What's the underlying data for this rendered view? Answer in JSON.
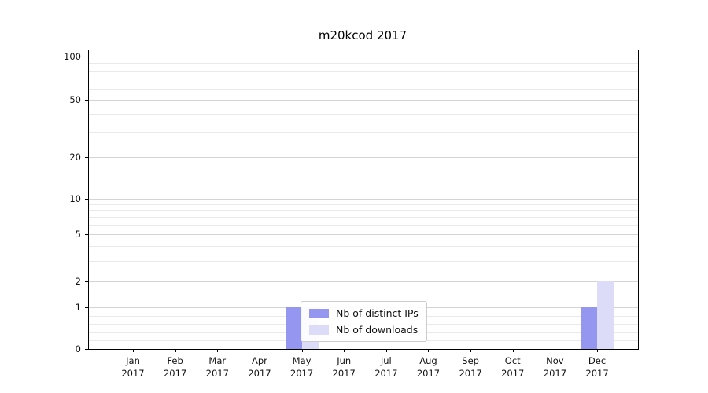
{
  "chart_data": {
    "type": "bar",
    "title": "m20kcod 2017",
    "categories": [
      "Jan",
      "Feb",
      "Mar",
      "Apr",
      "May",
      "Jun",
      "Jul",
      "Aug",
      "Sep",
      "Oct",
      "Nov",
      "Dec"
    ],
    "year": "2017",
    "series": [
      {
        "name": "Nb of distinct IPs",
        "color": "#9496ef",
        "values": [
          0,
          0,
          0,
          0,
          1,
          0,
          0,
          0,
          0,
          0,
          0,
          1
        ]
      },
      {
        "name": "Nb of downloads",
        "color": "#dcdcf8",
        "values": [
          0,
          0,
          0,
          0,
          1,
          0,
          0,
          0,
          0,
          0,
          0,
          2
        ]
      }
    ],
    "y_ticks": [
      0,
      1,
      2,
      5,
      10,
      20,
      50,
      100
    ],
    "y_scale": "symlog",
    "ylim": [
      0,
      110
    ],
    "xlabel": "",
    "ylabel": "",
    "grid": {
      "axis": "y",
      "which": "both"
    },
    "legend": {
      "position": "lower center"
    }
  }
}
